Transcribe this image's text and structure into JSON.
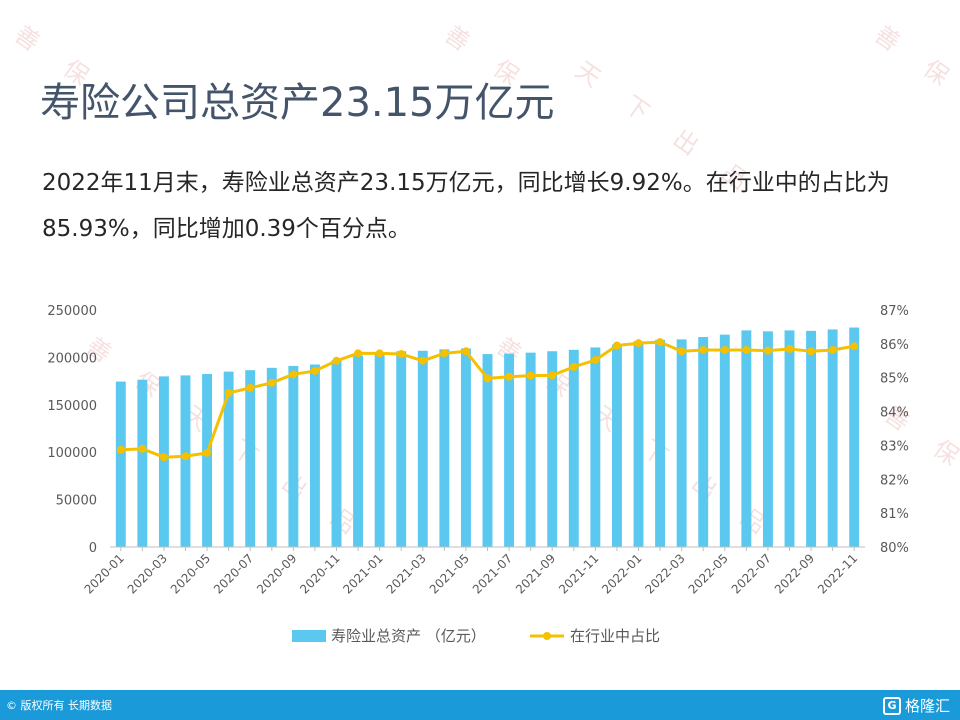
{
  "title": "寿险公司总资产23.15万亿元",
  "description": "2022年11月末，寿险业总资产23.15万亿元，同比增长9.92%。在行业中的占比为85.93%，同比增加0.39个百分点。",
  "footer": {
    "copyright": "© 版权所有 长期数据",
    "brand": "格隆汇",
    "brand_icon": "G-logo-icon",
    "background": "#1a9ad8"
  },
  "watermark_icon": "diagonal-watermark",
  "chart_data": {
    "type": "bar",
    "categories": [
      "2020-01",
      "2020-02",
      "2020-03",
      "2020-04",
      "2020-05",
      "2020-06",
      "2020-07",
      "2020-08",
      "2020-09",
      "2020-10",
      "2020-11",
      "2020-12",
      "2021-01",
      "2021-02",
      "2021-03",
      "2021-04",
      "2021-05",
      "2021-06",
      "2021-07",
      "2021-08",
      "2021-09",
      "2021-10",
      "2021-11",
      "2021-12",
      "2022-01",
      "2022-02",
      "2022-03",
      "2022-04",
      "2022-05",
      "2022-06",
      "2022-07",
      "2022-08",
      "2022-09",
      "2022-10",
      "2022-11"
    ],
    "x_tick_labels": [
      "2020-01",
      "2020-03",
      "2020-05",
      "2020-07",
      "2020-09",
      "2020-11",
      "2021-01",
      "2021-03",
      "2021-05",
      "2021-07",
      "2021-09",
      "2021-11",
      "2022-01",
      "2022-03",
      "2022-05",
      "2022-07",
      "2022-09",
      "2022-11"
    ],
    "series": [
      {
        "name": "寿险业总资产 （亿元）",
        "type": "bar",
        "axis": "left",
        "color": "#5bc8f0",
        "values": [
          174500,
          176500,
          180000,
          181000,
          182500,
          185000,
          186500,
          189000,
          191000,
          192500,
          197000,
          202000,
          205000,
          206500,
          207000,
          208500,
          209500,
          203500,
          204000,
          205000,
          206500,
          208000,
          210500,
          213500,
          217000,
          218500,
          219000,
          221500,
          224000,
          228500,
          227500,
          228500,
          228000,
          229500,
          231500
        ]
      },
      {
        "name": "在行业中占比",
        "type": "line",
        "axis": "right",
        "color": "#f5c000",
        "values": [
          82.87,
          82.9,
          82.65,
          82.68,
          82.78,
          84.55,
          84.7,
          84.85,
          85.1,
          85.2,
          85.5,
          85.72,
          85.72,
          85.7,
          85.5,
          85.72,
          85.78,
          84.98,
          85.03,
          85.06,
          85.07,
          85.32,
          85.52,
          85.95,
          86.02,
          86.05,
          85.78,
          85.82,
          85.82,
          85.82,
          85.8,
          85.85,
          85.78,
          85.82,
          85.93
        ]
      }
    ],
    "y_left": {
      "min": 0,
      "max": 250000,
      "ticks": [
        0,
        50000,
        100000,
        150000,
        200000,
        250000
      ]
    },
    "y_right": {
      "min": 80,
      "max": 87,
      "ticks": [
        "80%",
        "81%",
        "82%",
        "83%",
        "84%",
        "85%",
        "86%",
        "87%"
      ]
    },
    "legend_position": "bottom",
    "grid": false
  }
}
